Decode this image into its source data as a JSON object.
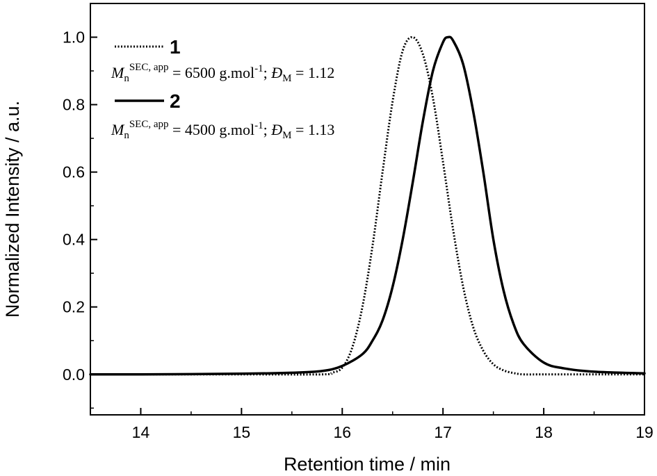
{
  "chart_data": {
    "type": "line",
    "xlabel": "Retention time / min",
    "ylabel": "Normalized Intensity / a.u.",
    "xlim": [
      13.5,
      19
    ],
    "ylim": [
      -0.12,
      1.1
    ],
    "x_ticks": [
      14,
      15,
      16,
      17,
      18,
      19
    ],
    "x_tick_labels": [
      "14",
      "15",
      "16",
      "17",
      "18",
      "19"
    ],
    "y_ticks": [
      0.0,
      0.2,
      0.4,
      0.6,
      0.8,
      1.0
    ],
    "y_tick_labels": [
      "0.0",
      "0.2",
      "0.4",
      "0.6",
      "0.8",
      "1.0"
    ],
    "grid": false,
    "legend_position": "top-left",
    "series": [
      {
        "name": "1",
        "style": "dotted",
        "color": "#000000",
        "annotation": {
          "m_symbol": "M",
          "m_sub": "n",
          "m_sup": "SEC, app",
          "mass_text": " = 6500 g.mol",
          "mass_exp": "-1",
          "sep": "; ",
          "d_symbol": "Đ",
          "d_sub": "M",
          "d_text": " = 1.12"
        },
        "x": [
          13.5,
          14.0,
          15.0,
          15.8,
          15.9,
          16.0,
          16.1,
          16.2,
          16.3,
          16.4,
          16.5,
          16.6,
          16.7,
          16.8,
          16.9,
          17.0,
          17.1,
          17.2,
          17.3,
          17.4,
          17.5,
          17.6,
          17.7,
          17.8,
          18.0,
          19.0
        ],
        "y": [
          0.0,
          0.0,
          0.0,
          0.0,
          0.005,
          0.02,
          0.08,
          0.2,
          0.38,
          0.6,
          0.81,
          0.96,
          1.0,
          0.95,
          0.82,
          0.63,
          0.43,
          0.26,
          0.14,
          0.07,
          0.03,
          0.012,
          0.004,
          0.0,
          0.0,
          0.0
        ]
      },
      {
        "name": "2",
        "style": "solid",
        "color": "#000000",
        "annotation": {
          "m_symbol": "M",
          "m_sub": "n",
          "m_sup": "SEC, app",
          "mass_text": " = 4500 g.mol",
          "mass_exp": "-1",
          "sep": "; ",
          "d_symbol": "Đ",
          "d_sub": "M",
          "d_text": " = 1.13"
        },
        "x": [
          13.5,
          14.0,
          15.0,
          15.5,
          15.8,
          16.0,
          16.2,
          16.3,
          16.4,
          16.5,
          16.6,
          16.7,
          16.8,
          16.9,
          17.0,
          17.05,
          17.1,
          17.2,
          17.3,
          17.4,
          17.5,
          17.6,
          17.7,
          17.8,
          18.0,
          18.2,
          18.5,
          19.0
        ],
        "y": [
          0.0,
          0.0,
          0.002,
          0.005,
          0.01,
          0.025,
          0.06,
          0.1,
          0.16,
          0.26,
          0.4,
          0.57,
          0.75,
          0.9,
          0.985,
          1.0,
          0.99,
          0.92,
          0.78,
          0.6,
          0.4,
          0.25,
          0.15,
          0.09,
          0.035,
          0.018,
          0.008,
          0.003
        ]
      }
    ]
  }
}
